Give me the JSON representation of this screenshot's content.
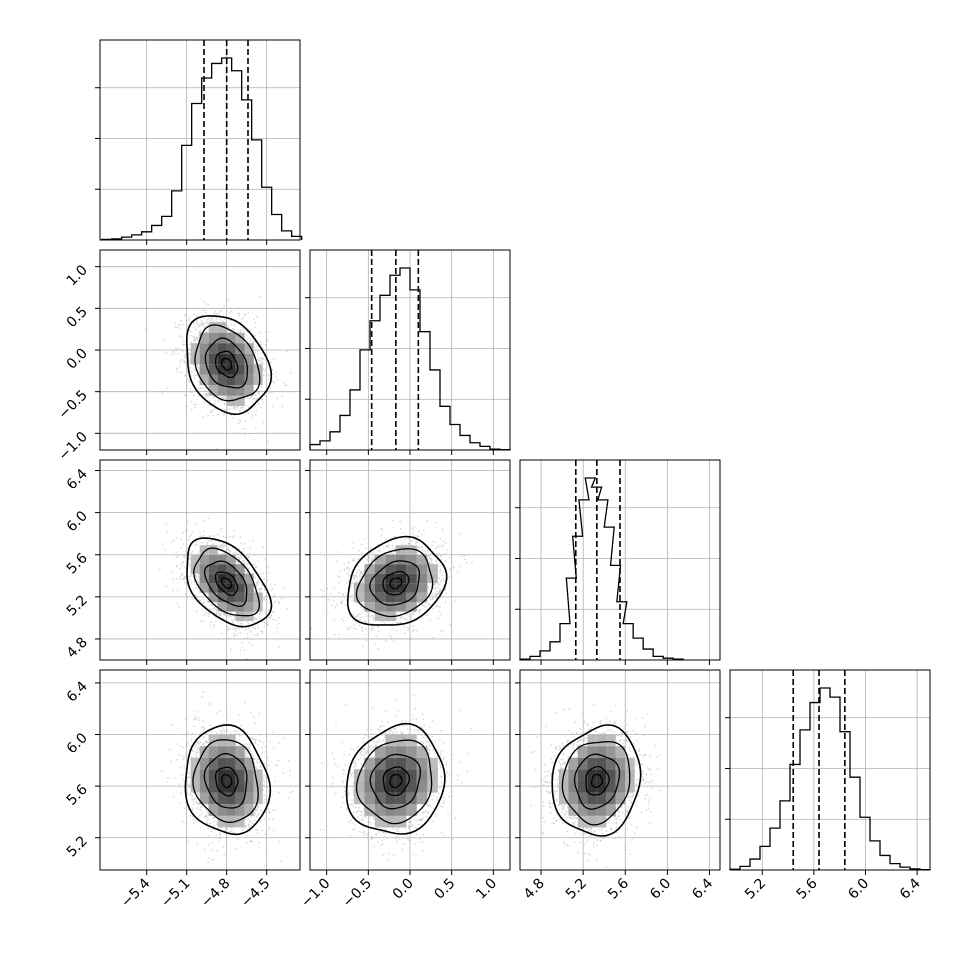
{
  "chart_data": {
    "type": "corner",
    "colors": {
      "frame": "#000000",
      "grid": "#b0b0b0",
      "scatter": "#bdbdbd",
      "line": "#000000"
    },
    "grid": true,
    "params": [
      {
        "range": [
          -5.75,
          -4.25
        ],
        "ticks": [
          -5.4,
          -5.1,
          -4.8,
          -4.5
        ],
        "tick_labels": [
          "−5.4",
          "−5.1",
          "−4.8",
          "−4.5"
        ],
        "mean": -4.8,
        "sd": 0.15,
        "quantiles": [
          -4.97,
          -4.8,
          -4.64
        ],
        "hist": [
          [
            -5.7,
            0.003
          ],
          [
            -5.625,
            0.006
          ],
          [
            -5.55,
            0.016
          ],
          [
            -5.475,
            0.028
          ],
          [
            -5.4,
            0.045
          ],
          [
            -5.325,
            0.08
          ],
          [
            -5.25,
            0.13
          ],
          [
            -5.175,
            0.27
          ],
          [
            -5.1,
            0.52
          ],
          [
            -5.025,
            0.75
          ],
          [
            -4.95,
            0.89
          ],
          [
            -4.875,
            0.97
          ],
          [
            -4.8,
            1.0
          ],
          [
            -4.725,
            0.93
          ],
          [
            -4.65,
            0.77
          ],
          [
            -4.575,
            0.55
          ],
          [
            -4.5,
            0.29
          ],
          [
            -4.425,
            0.14
          ],
          [
            -4.35,
            0.05
          ],
          [
            -4.275,
            0.02
          ]
        ]
      },
      {
        "range": [
          -1.2,
          1.2
        ],
        "ticks": [
          -1.0,
          -0.5,
          0.0,
          0.5,
          1.0
        ],
        "tick_labels": [
          "−1.0",
          "−0.5",
          "0.0",
          "0.5",
          "1.0"
        ],
        "mean": -0.17,
        "sd": 0.28,
        "quantiles": [
          -0.46,
          -0.17,
          0.1
        ],
        "hist": [
          [
            -1.14,
            0.03
          ],
          [
            -1.02,
            0.05
          ],
          [
            -0.9,
            0.1
          ],
          [
            -0.78,
            0.19
          ],
          [
            -0.66,
            0.33
          ],
          [
            -0.54,
            0.55
          ],
          [
            -0.42,
            0.71
          ],
          [
            -0.3,
            0.85
          ],
          [
            -0.18,
            0.96
          ],
          [
            -0.06,
            1.0
          ],
          [
            0.06,
            0.88
          ],
          [
            0.18,
            0.65
          ],
          [
            0.3,
            0.44
          ],
          [
            0.42,
            0.24
          ],
          [
            0.54,
            0.14
          ],
          [
            0.66,
            0.08
          ],
          [
            0.78,
            0.04
          ],
          [
            0.9,
            0.02
          ],
          [
            1.02,
            0.005
          ],
          [
            1.14,
            0.002
          ]
        ]
      },
      {
        "range": [
          4.6,
          6.5
        ],
        "ticks": [
          4.8,
          5.2,
          5.6,
          6.0,
          6.4
        ],
        "tick_labels": [
          "4.8",
          "5.2",
          "5.6",
          "6.0",
          "6.4"
        ],
        "mean": 5.33,
        "sd": 0.2,
        "quantiles": [
          5.13,
          5.33,
          5.55
        ],
        "hist": [
          [
            4.6475,
            0.005
          ],
          [
            4.7425,
            0.02
          ],
          [
            4.8375,
            0.05
          ],
          [
            4.9325,
            0.1
          ],
          [
            5.0275,
            0.2
          ],
          [
            5.0875,
            0.45
          ],
          [
            5.1475,
            0.68
          ],
          [
            5.2075,
            0.88
          ],
          [
            5.2675,
            1.0
          ],
          [
            5.3275,
            0.95
          ],
          [
            5.3875,
            0.88
          ],
          [
            5.4475,
            0.73
          ],
          [
            5.5075,
            0.52
          ],
          [
            5.5675,
            0.32
          ],
          [
            5.6275,
            0.2
          ],
          [
            5.7225,
            0.12
          ],
          [
            5.8175,
            0.06
          ],
          [
            5.9125,
            0.02
          ],
          [
            6.0075,
            0.01
          ],
          [
            6.1025,
            0.005
          ]
        ]
      },
      {
        "range": [
          4.95,
          6.5
        ],
        "ticks": [
          5.2,
          5.6,
          6.0,
          6.4
        ],
        "tick_labels": [
          "5.2",
          "5.6",
          "6.0",
          "6.4"
        ],
        "mean": 5.64,
        "sd": 0.2,
        "quantiles": [
          5.44,
          5.64,
          5.84
        ],
        "hist": [
          [
            4.9888,
            0.004
          ],
          [
            5.0663,
            0.02
          ],
          [
            5.1438,
            0.06
          ],
          [
            5.2213,
            0.13
          ],
          [
            5.2988,
            0.23
          ],
          [
            5.3763,
            0.38
          ],
          [
            5.4538,
            0.58
          ],
          [
            5.5313,
            0.77
          ],
          [
            5.6088,
            0.92
          ],
          [
            5.6863,
            1.0
          ],
          [
            5.7638,
            0.95
          ],
          [
            5.8413,
            0.76
          ],
          [
            5.9188,
            0.51
          ],
          [
            5.9963,
            0.29
          ],
          [
            6.0738,
            0.16
          ],
          [
            6.1513,
            0.08
          ],
          [
            6.2288,
            0.035
          ],
          [
            6.3063,
            0.016
          ],
          [
            6.3838,
            0.006
          ],
          [
            6.4613,
            0.002
          ]
        ]
      }
    ],
    "pair_correlations": {
      "1-0": -0.25,
      "2-0": -0.45,
      "2-1": 0.2,
      "3-0": -0.1,
      "3-1": 0.1,
      "3-2": 0.1
    },
    "scatter_points_per_panel": 1800
  }
}
